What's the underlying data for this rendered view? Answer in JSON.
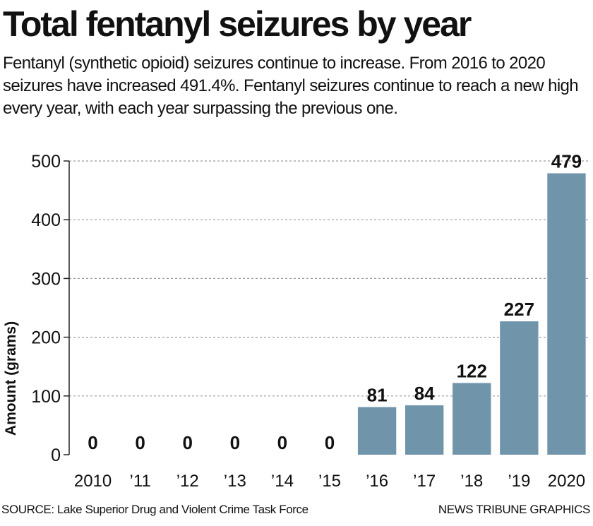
{
  "header": {
    "title": "Total fentanyl seizures by year",
    "subtitle": "Fentanyl (synthetic opioid) seizures continue to increase. From 2016 to 2020 seizures have increased 491.4%. Fentanyl seizures continue to reach a new high every year, with each year surpassing the previous one."
  },
  "footer": {
    "source": "SOURCE: Lake Superior Drug and Violent Crime Task Force",
    "credit": "NEWS TRIBUNE GRAPHICS"
  },
  "chart_data": {
    "type": "bar",
    "categories": [
      "2010",
      "’11",
      "’12",
      "’13",
      "’14",
      "’15",
      "’16",
      "’17",
      "’18",
      "’19",
      "2020"
    ],
    "values": [
      0,
      0,
      0,
      0,
      0,
      0,
      81,
      84,
      122,
      227,
      479
    ],
    "data_labels": [
      "0",
      "0",
      "0",
      "0",
      "0",
      "0",
      "81",
      "84",
      "122",
      "227",
      "479"
    ],
    "xlabel": "",
    "ylabel": "Amount (grams)",
    "ylim": [
      0,
      500
    ],
    "yticks": [
      "0",
      "100",
      "200",
      "300",
      "400",
      "500"
    ],
    "grid": true,
    "bar_color": "#7094aa",
    "grid_color": "#9a9a9a"
  }
}
